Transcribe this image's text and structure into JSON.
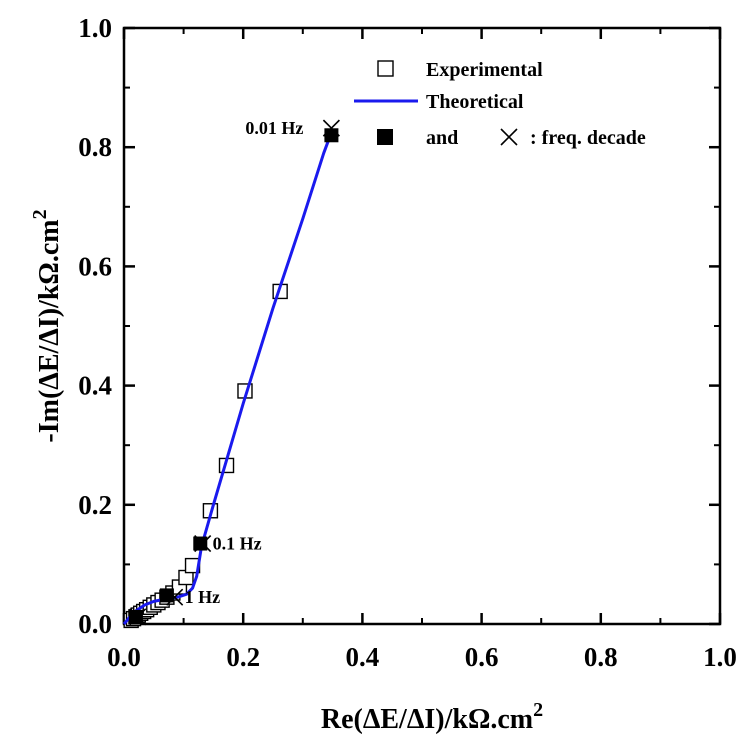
{
  "chart_data": {
    "type": "scatter",
    "xlabel": "Re(ΔE/ΔI)/kΩ.cm",
    "xlabel_sup": "2",
    "ylabel": "-Im(ΔE/ΔI)/kΩ.cm",
    "ylabel_sup": "2",
    "xlim": [
      0,
      1
    ],
    "ylim": [
      0,
      1
    ],
    "x_ticks": [
      "0.0",
      "0.2",
      "0.4",
      "0.6",
      "0.8",
      "1.0"
    ],
    "y_ticks": [
      "0.0",
      "0.2",
      "0.4",
      "0.6",
      "0.8",
      "1.0"
    ],
    "grid": false,
    "legend_position": "top-right",
    "legend": {
      "experimental": "Experimental",
      "theoretical": "Theoretical",
      "and_text": "and",
      "decade_text": ": freq. decade"
    },
    "colors": {
      "theoretical_line": "#1a1aee",
      "markers": "#000000"
    },
    "series": [
      {
        "name": "Experimental",
        "marker": "open-square",
        "x": [
          0.012,
          0.016,
          0.02,
          0.024,
          0.028,
          0.033,
          0.038,
          0.044,
          0.05,
          0.057,
          0.064,
          0.072,
          0.082,
          0.093,
          0.104,
          0.115,
          0.145,
          0.172,
          0.203,
          0.262
        ],
        "y": [
          0.006,
          0.009,
          0.012,
          0.015,
          0.018,
          0.021,
          0.024,
          0.028,
          0.032,
          0.036,
          0.04,
          0.045,
          0.052,
          0.062,
          0.078,
          0.098,
          0.19,
          0.266,
          0.391,
          0.558
        ]
      },
      {
        "name": "Theoretical",
        "marker": "line",
        "x": [
          0.0,
          0.01,
          0.02,
          0.035,
          0.05,
          0.07,
          0.09,
          0.105,
          0.115,
          0.122,
          0.13,
          0.15,
          0.2,
          0.25,
          0.3,
          0.335,
          0.35
        ],
        "y": [
          0.0,
          0.012,
          0.022,
          0.032,
          0.038,
          0.042,
          0.045,
          0.05,
          0.06,
          0.08,
          0.13,
          0.2,
          0.37,
          0.53,
          0.68,
          0.79,
          0.83
        ]
      },
      {
        "name": "Experimental freq. decade",
        "marker": "filled-square",
        "x": [
          0.02,
          0.072,
          0.128,
          0.348
        ],
        "y": [
          0.012,
          0.048,
          0.135,
          0.82
        ]
      },
      {
        "name": "Theoretical freq. decade",
        "marker": "x",
        "x": [
          0.023,
          0.085,
          0.132,
          0.348
        ],
        "y": [
          0.012,
          0.045,
          0.135,
          0.832
        ]
      }
    ],
    "annotations": [
      {
        "text": "0.01 Hz",
        "x": 0.348,
        "y": 0.832,
        "side": "left"
      },
      {
        "text": "0.1 Hz",
        "x": 0.132,
        "y": 0.135,
        "side": "right"
      },
      {
        "text": "1 Hz",
        "x": 0.085,
        "y": 0.045,
        "side": "right"
      }
    ]
  }
}
